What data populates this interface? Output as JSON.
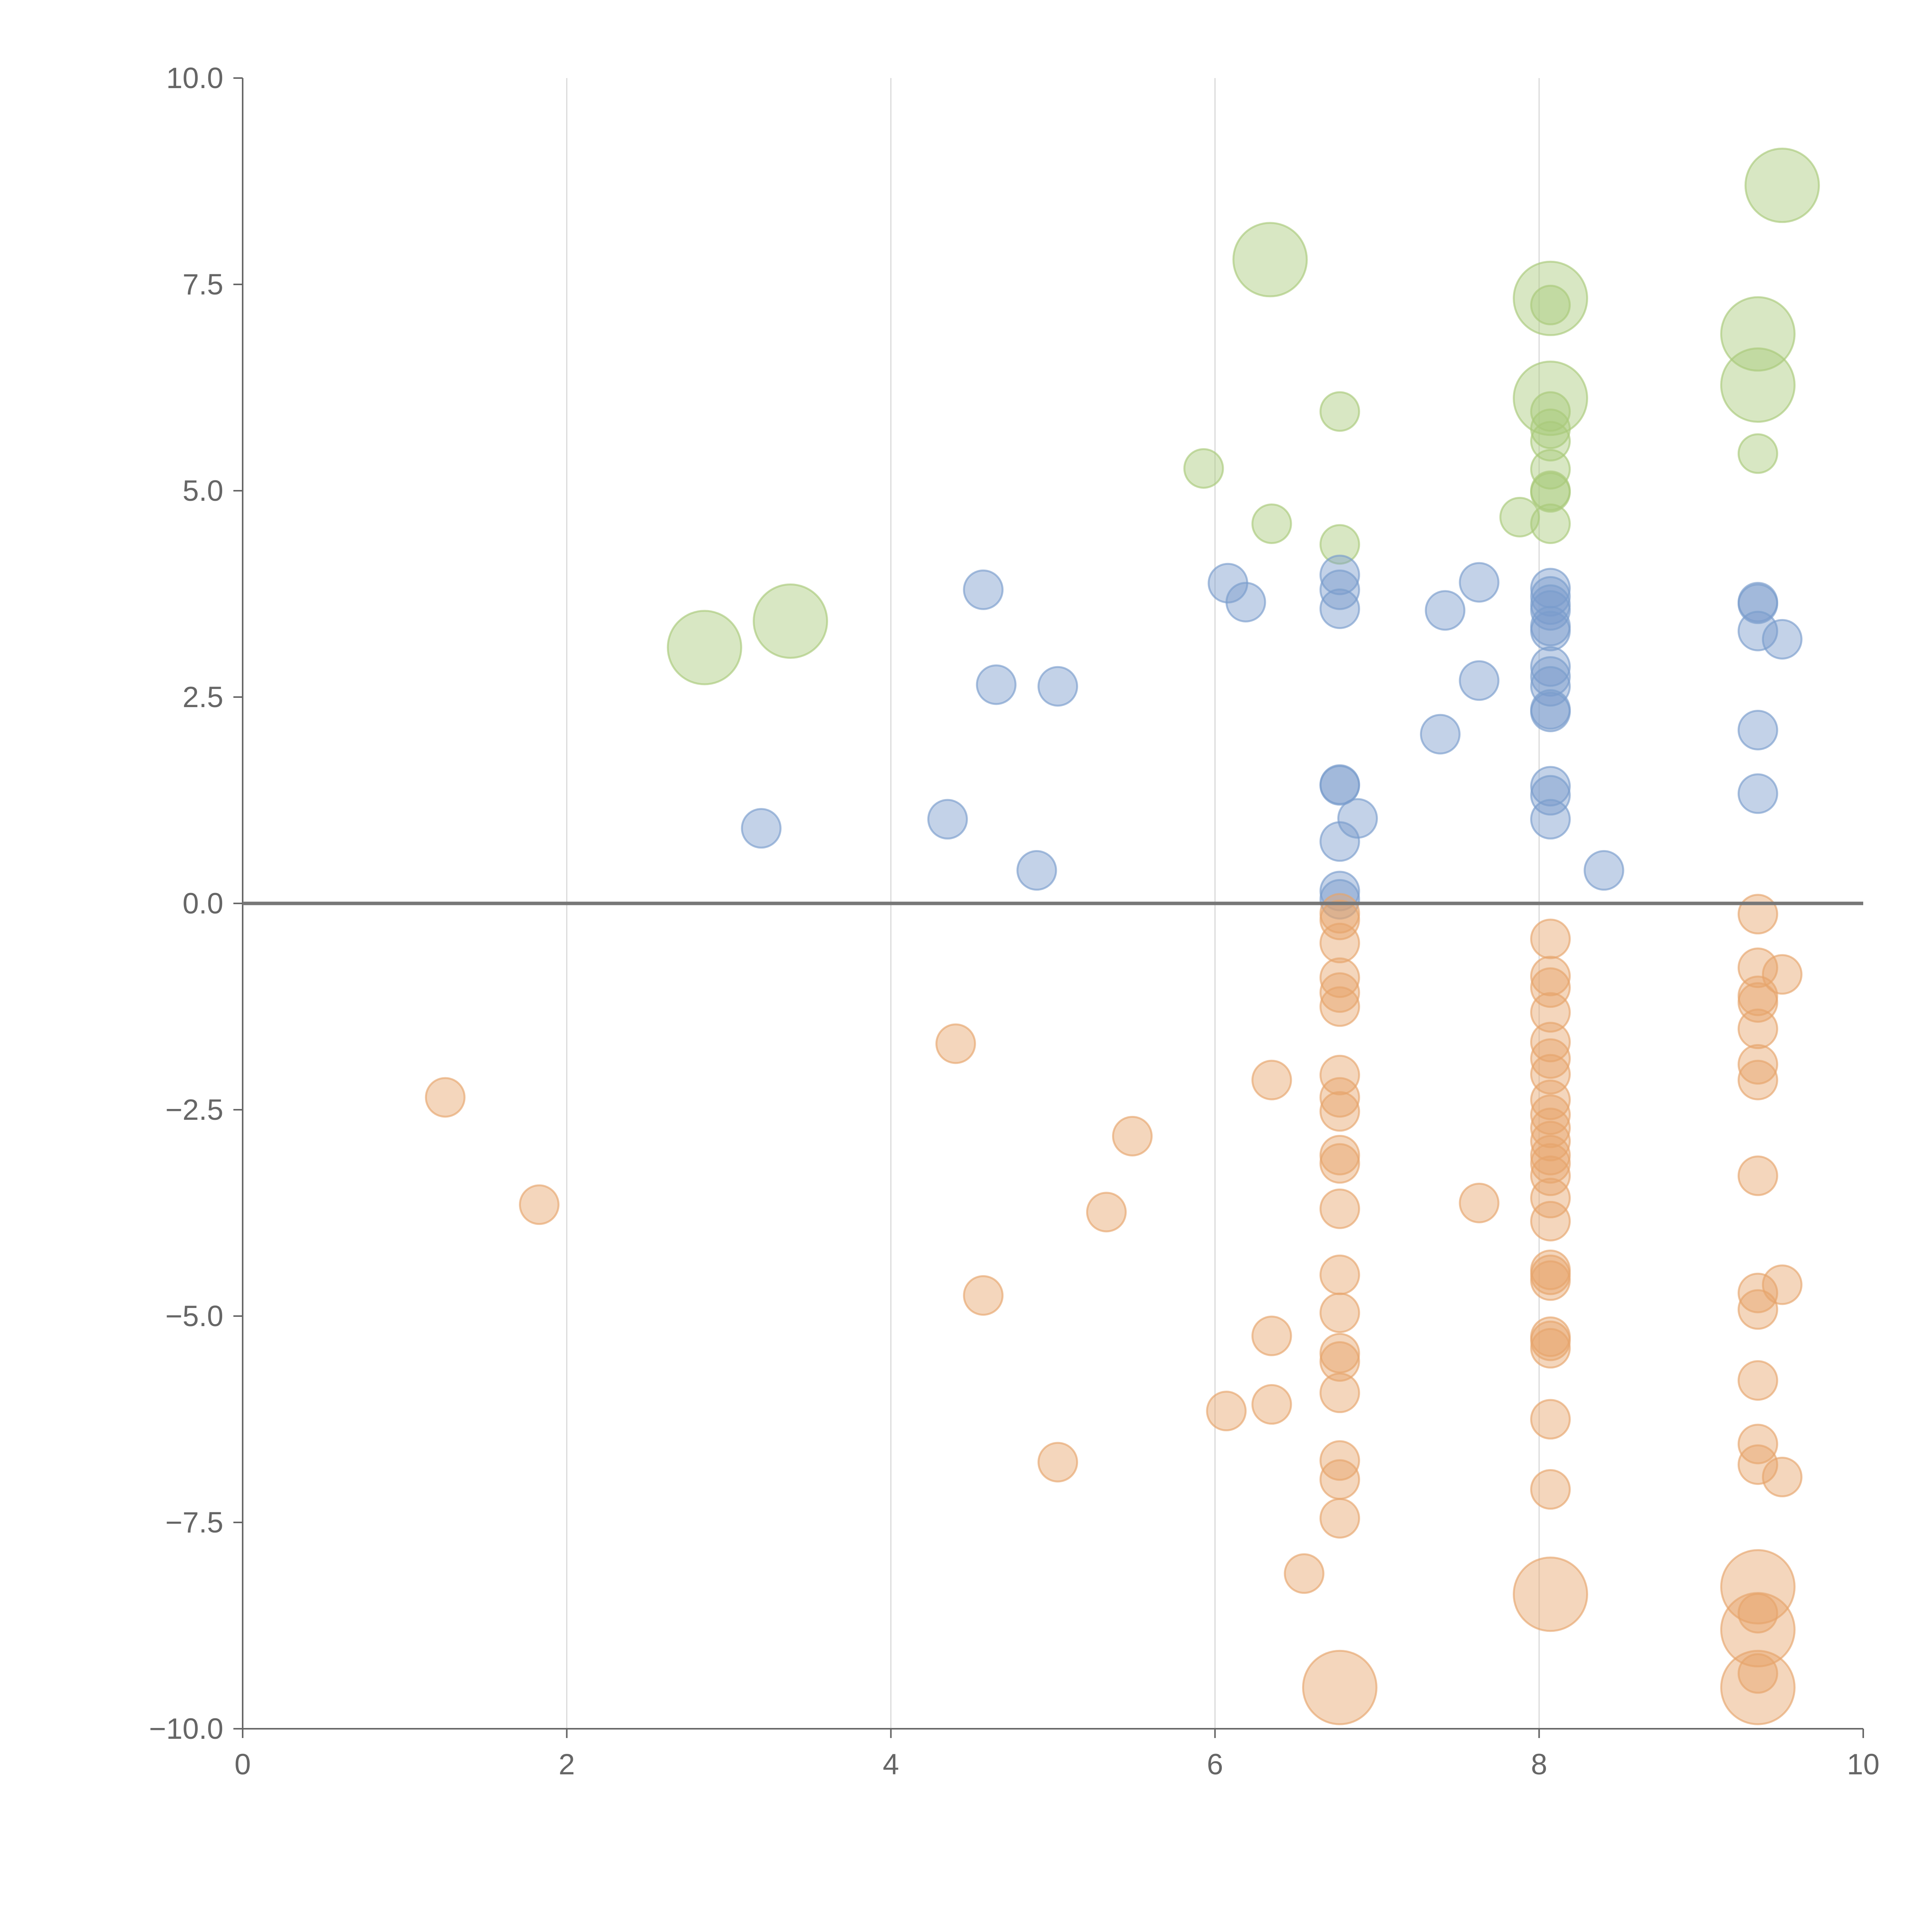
{
  "chart_data": {
    "type": "scatter",
    "title": "",
    "xlabel": "",
    "ylabel": "",
    "xlim": [
      0,
      10
    ],
    "ylim": [
      -10,
      10
    ],
    "grid": "vertical",
    "legend": "none",
    "x_ticks": [
      "0",
      "2",
      "4",
      "6",
      "8",
      "10"
    ],
    "y_ticks": [
      "10.0",
      "7.5",
      "5.0",
      "2.5",
      "0.0",
      "−2.5",
      "−5.0",
      "−7.5",
      "−10.0"
    ],
    "colors": {
      "green": "#a9c97a",
      "blue": "#7a9ccd",
      "orange": "#e6a46b"
    },
    "series": [
      {
        "name": "green",
        "points": [
          [
            2.85,
            3.1,
            2
          ],
          [
            3.38,
            3.42,
            2
          ],
          [
            5.93,
            5.27,
            1
          ],
          [
            6.34,
            7.8,
            2
          ],
          [
            6.35,
            4.6,
            1
          ],
          [
            6.77,
            5.96,
            1
          ],
          [
            6.77,
            4.35,
            1
          ],
          [
            7.88,
            4.68,
            1
          ],
          [
            8.07,
            7.33,
            2
          ],
          [
            8.07,
            7.25,
            1
          ],
          [
            8.07,
            6.12,
            2
          ],
          [
            8.07,
            5.96,
            1
          ],
          [
            8.07,
            5.75,
            1
          ],
          [
            8.07,
            5.6,
            1
          ],
          [
            8.07,
            5.26,
            1
          ],
          [
            8.07,
            5.0,
            1
          ],
          [
            8.07,
            4.98,
            1
          ],
          [
            8.07,
            4.6,
            1
          ],
          [
            9.35,
            6.9,
            2
          ],
          [
            9.35,
            6.28,
            2
          ],
          [
            9.35,
            5.45,
            1
          ],
          [
            9.5,
            8.7,
            2
          ]
        ]
      },
      {
        "name": "blue",
        "points": [
          [
            3.2,
            0.91,
            1
          ],
          [
            4.35,
            1.02,
            1
          ],
          [
            4.57,
            3.8,
            1
          ],
          [
            4.65,
            2.65,
            1
          ],
          [
            4.9,
            0.4,
            1
          ],
          [
            5.03,
            2.63,
            1
          ],
          [
            6.08,
            3.88,
            1
          ],
          [
            6.19,
            3.65,
            1
          ],
          [
            6.77,
            3.98,
            1
          ],
          [
            6.77,
            3.8,
            1
          ],
          [
            6.77,
            3.57,
            1
          ],
          [
            6.77,
            1.44,
            1
          ],
          [
            6.77,
            1.43,
            1
          ],
          [
            6.77,
            0.75,
            1
          ],
          [
            6.77,
            0.15,
            1
          ],
          [
            6.77,
            0.05,
            1
          ],
          [
            6.88,
            1.03,
            1
          ],
          [
            7.39,
            2.05,
            1
          ],
          [
            7.42,
            3.55,
            1
          ],
          [
            7.63,
            3.89,
            1
          ],
          [
            7.63,
            2.7,
            1
          ],
          [
            8.07,
            3.82,
            1
          ],
          [
            8.07,
            3.72,
            1
          ],
          [
            8.07,
            3.62,
            1
          ],
          [
            8.07,
            3.55,
            1
          ],
          [
            8.07,
            3.36,
            1
          ],
          [
            8.07,
            3.3,
            1
          ],
          [
            8.07,
            2.87,
            1
          ],
          [
            8.07,
            2.75,
            1
          ],
          [
            8.07,
            2.63,
            1
          ],
          [
            8.07,
            2.35,
            1
          ],
          [
            8.07,
            2.32,
            1
          ],
          [
            8.07,
            1.42,
            1
          ],
          [
            8.07,
            1.31,
            1
          ],
          [
            8.07,
            1.02,
            1
          ],
          [
            8.4,
            0.4,
            1
          ],
          [
            9.35,
            3.65,
            1
          ],
          [
            9.35,
            3.63,
            1
          ],
          [
            9.35,
            3.3,
            1
          ],
          [
            9.35,
            2.1,
            1
          ],
          [
            9.35,
            1.33,
            1
          ],
          [
            9.5,
            3.2,
            1
          ]
        ]
      },
      {
        "name": "orange",
        "points": [
          [
            1.25,
            -2.35,
            1
          ],
          [
            1.83,
            -3.65,
            1
          ],
          [
            4.4,
            -1.7,
            1
          ],
          [
            4.57,
            -4.75,
            1
          ],
          [
            5.03,
            -6.77,
            1
          ],
          [
            5.33,
            -3.74,
            1
          ],
          [
            5.49,
            -2.82,
            1
          ],
          [
            6.07,
            -6.15,
            1
          ],
          [
            6.35,
            -2.14,
            1
          ],
          [
            6.35,
            -5.24,
            1
          ],
          [
            6.35,
            -6.07,
            1
          ],
          [
            6.55,
            -8.12,
            1
          ],
          [
            6.77,
            -0.12,
            1
          ],
          [
            6.77,
            -0.2,
            1
          ],
          [
            6.77,
            -0.48,
            1
          ],
          [
            6.77,
            -0.9,
            1
          ],
          [
            6.77,
            -1.08,
            1
          ],
          [
            6.77,
            -1.25,
            1
          ],
          [
            6.77,
            -2.08,
            1
          ],
          [
            6.77,
            -2.35,
            1
          ],
          [
            6.77,
            -2.52,
            1
          ],
          [
            6.77,
            -3.05,
            1
          ],
          [
            6.77,
            -3.15,
            1
          ],
          [
            6.77,
            -3.7,
            1
          ],
          [
            6.77,
            -4.5,
            1
          ],
          [
            6.77,
            -4.96,
            1
          ],
          [
            6.77,
            -5.45,
            1
          ],
          [
            6.77,
            -5.55,
            1
          ],
          [
            6.77,
            -5.93,
            1
          ],
          [
            6.77,
            -6.75,
            1
          ],
          [
            6.77,
            -6.98,
            1
          ],
          [
            6.77,
            -7.45,
            1
          ],
          [
            6.77,
            -9.5,
            2
          ],
          [
            7.63,
            -3.63,
            1
          ],
          [
            8.07,
            -0.43,
            1
          ],
          [
            8.07,
            -0.88,
            1
          ],
          [
            8.07,
            -1.02,
            1
          ],
          [
            8.07,
            -1.32,
            1
          ],
          [
            8.07,
            -1.68,
            1
          ],
          [
            8.07,
            -1.88,
            1
          ],
          [
            8.07,
            -2.07,
            1
          ],
          [
            8.07,
            -2.38,
            1
          ],
          [
            8.07,
            -2.56,
            1
          ],
          [
            8.07,
            -2.72,
            1
          ],
          [
            8.07,
            -2.88,
            1
          ],
          [
            8.07,
            -3.05,
            1
          ],
          [
            8.07,
            -3.15,
            1
          ],
          [
            8.07,
            -3.3,
            1
          ],
          [
            8.07,
            -3.57,
            1
          ],
          [
            8.07,
            -3.85,
            1
          ],
          [
            8.07,
            -4.44,
            1
          ],
          [
            8.07,
            -4.5,
            1
          ],
          [
            8.07,
            -4.57,
            1
          ],
          [
            8.07,
            -5.25,
            1
          ],
          [
            8.07,
            -5.3,
            1
          ],
          [
            8.07,
            -5.39,
            1
          ],
          [
            8.07,
            -6.25,
            1
          ],
          [
            8.07,
            -7.1,
            1
          ],
          [
            8.07,
            -8.37,
            2
          ],
          [
            9.35,
            -0.13,
            1
          ],
          [
            9.35,
            -0.78,
            1
          ],
          [
            9.35,
            -1.12,
            1
          ],
          [
            9.35,
            -1.2,
            1
          ],
          [
            9.35,
            -1.52,
            1
          ],
          [
            9.35,
            -1.95,
            1
          ],
          [
            9.35,
            -2.14,
            1
          ],
          [
            9.35,
            -3.3,
            1
          ],
          [
            9.35,
            -4.72,
            1
          ],
          [
            9.35,
            -4.92,
            1
          ],
          [
            9.35,
            -5.78,
            1
          ],
          [
            9.35,
            -6.55,
            1
          ],
          [
            9.35,
            -6.8,
            1
          ],
          [
            9.35,
            -8.28,
            2
          ],
          [
            9.35,
            -8.6,
            1
          ],
          [
            9.35,
            -8.8,
            2
          ],
          [
            9.35,
            -9.33,
            1
          ],
          [
            9.35,
            -9.5,
            2
          ],
          [
            9.5,
            -0.86,
            1
          ],
          [
            9.5,
            -4.62,
            1
          ],
          [
            9.5,
            -6.95,
            1
          ]
        ]
      }
    ]
  }
}
